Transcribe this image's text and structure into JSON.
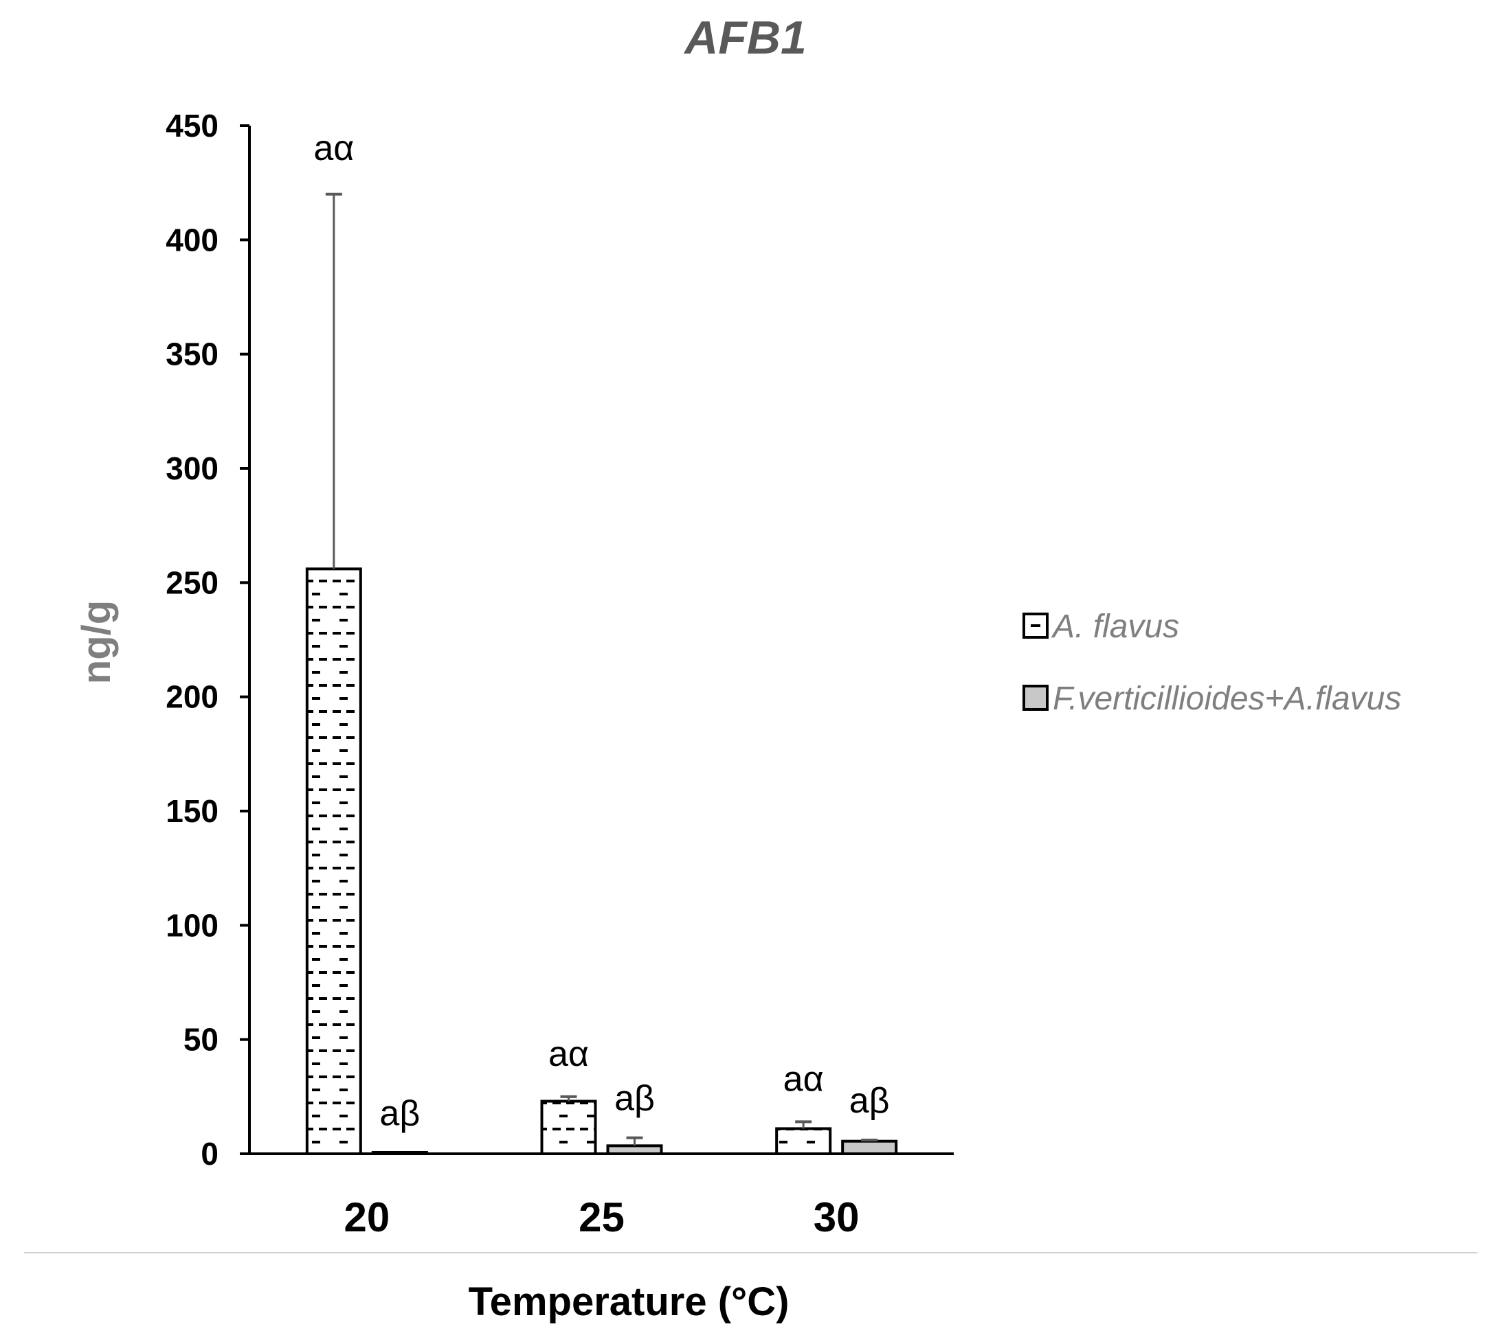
{
  "chart_data": {
    "type": "bar",
    "title": "AFB1",
    "xlabel": "Temperature (°C)",
    "ylabel": "ng/g",
    "categories": [
      "20",
      "25",
      "30"
    ],
    "ylim": [
      0,
      450
    ],
    "yticks": [
      0,
      50,
      100,
      150,
      200,
      250,
      300,
      350,
      400,
      450
    ],
    "grid": false,
    "legend_position": "right",
    "series": [
      {
        "name": "A. flavus",
        "values": [
          256,
          23,
          11
        ],
        "error_upper": [
          420,
          25,
          14
        ],
        "labels": [
          "aα",
          "aα",
          "aα"
        ],
        "pattern": "dashed"
      },
      {
        "name": "F.verticillioides+A.flavus",
        "values": [
          0.5,
          3.5,
          5.5
        ],
        "error_upper": [
          0.5,
          7,
          6
        ],
        "labels": [
          "aβ",
          "aβ",
          "aβ"
        ],
        "pattern": "gray"
      }
    ],
    "colors": {
      "title": "#595959",
      "ylabel": "#7f7f7f",
      "axis": "#000000",
      "error_bar": "#595959",
      "legend_text": "#7f7f7f",
      "series2_fill": "#c8c8c8",
      "divider": "#d0d0d0"
    }
  }
}
